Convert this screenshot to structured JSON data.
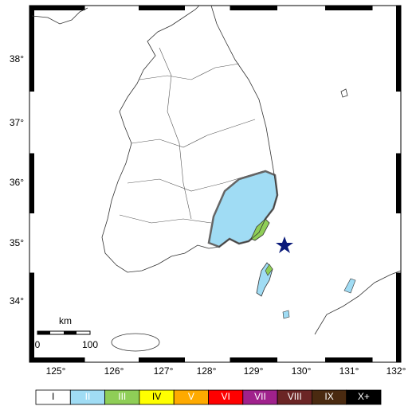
{
  "map": {
    "lat_labels": [
      "38°",
      "37°",
      "36°",
      "35°",
      "34°"
    ],
    "lon_labels": [
      "125°",
      "126°",
      "127°",
      "128°",
      "129°",
      "130°",
      "131°",
      "132°"
    ],
    "scale_bar": {
      "unit": "km",
      "labels": [
        "0",
        "100"
      ]
    },
    "legend": {
      "items": [
        {
          "label": "I",
          "color": "#ffffff"
        },
        {
          "label": "II",
          "color": "#a0dcf4"
        },
        {
          "label": "III",
          "color": "#8fce57"
        },
        {
          "label": "IV",
          "color": "#ffff00"
        },
        {
          "label": "V",
          "color": "#ffaa00"
        },
        {
          "label": "VI",
          "color": "#ff0000"
        },
        {
          "label": "VII",
          "color": "#a0218c"
        },
        {
          "label": "VIII",
          "color": "#6b2525"
        },
        {
          "label": "IX",
          "color": "#4a2a10"
        },
        {
          "label": "X+",
          "color": "#000000"
        }
      ]
    }
  }
}
